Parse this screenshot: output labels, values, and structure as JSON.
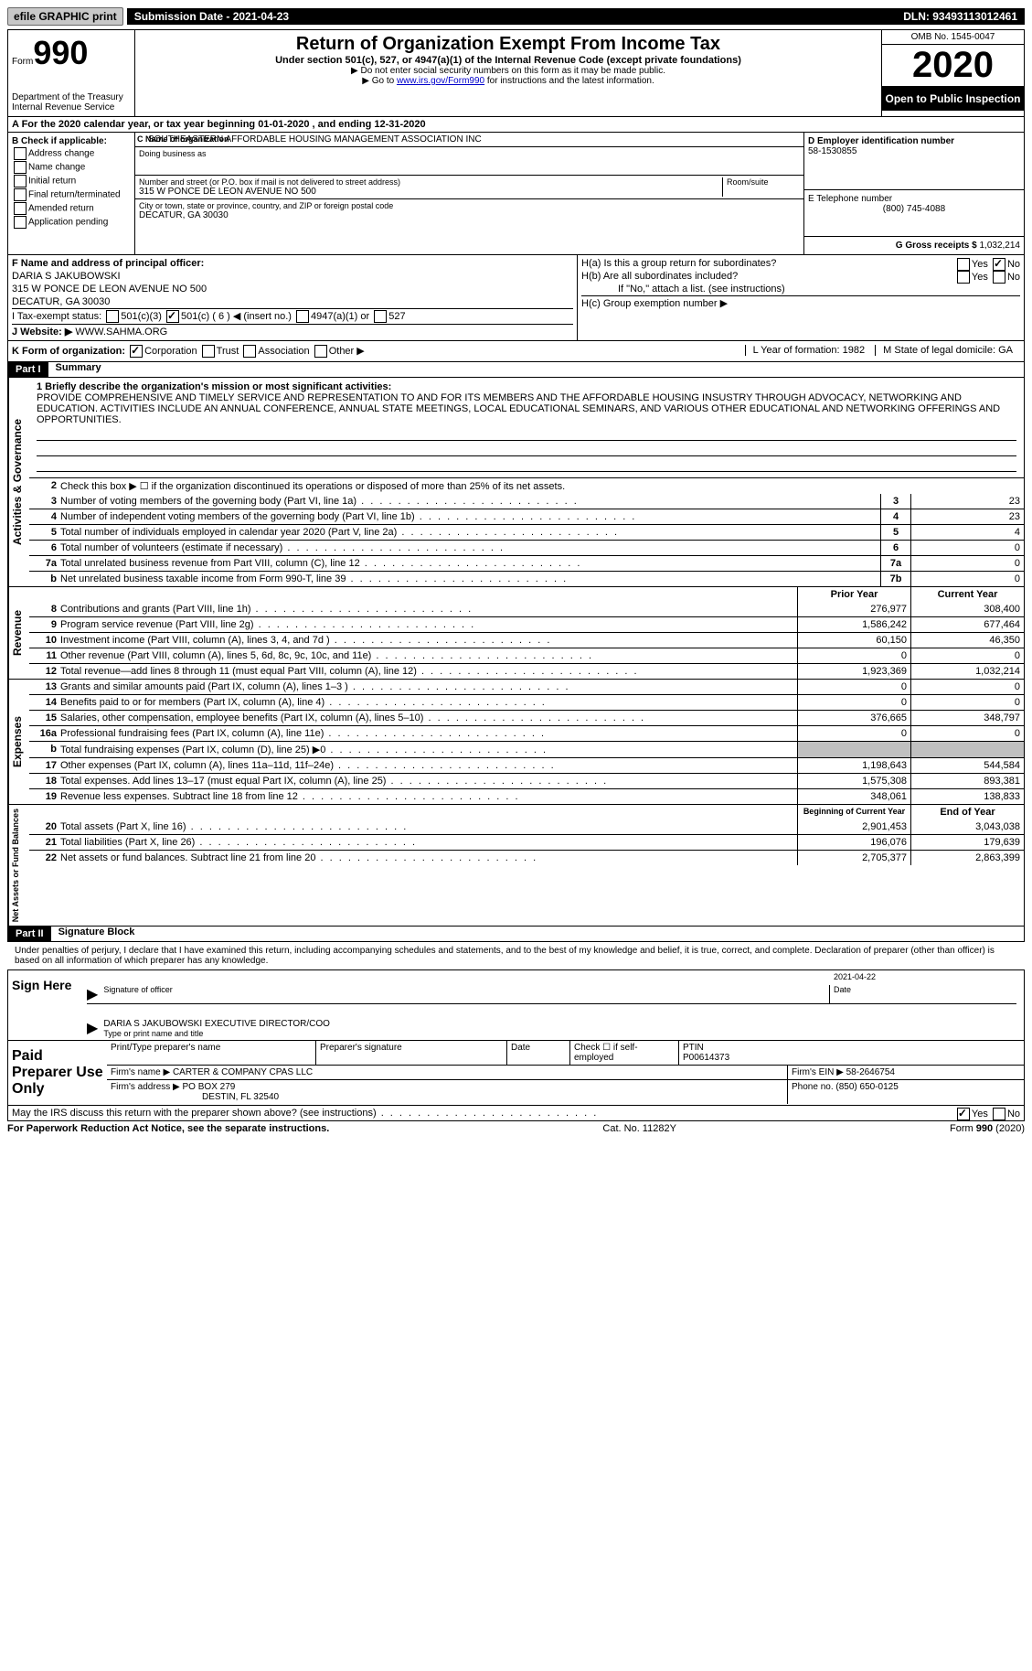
{
  "topbar": {
    "efile_label": "efile GRAPHIC print",
    "submission_label": "Submission Date - 2021-04-23",
    "dln_label": "DLN: 93493113012461"
  },
  "header": {
    "form_word": "Form",
    "form_num": "990",
    "dept": "Department of the Treasury",
    "irs": "Internal Revenue Service",
    "title": "Return of Organization Exempt From Income Tax",
    "sub": "Under section 501(c), 527, or 4947(a)(1) of the Internal Revenue Code (except private foundations)",
    "note1": "▶ Do not enter social security numbers on this form as it may be made public.",
    "note2_pre": "▶ Go to ",
    "note2_link": "www.irs.gov/Form990",
    "note2_post": " for instructions and the latest information.",
    "omb": "OMB No. 1545-0047",
    "year": "2020",
    "inspect": "Open to Public Inspection"
  },
  "rowA": "A For the 2020 calendar year, or tax year beginning 01-01-2020   , and ending 12-31-2020",
  "blockB": {
    "title": "B Check if applicable:",
    "opts": [
      "Address change",
      "Name change",
      "Initial return",
      "Final return/terminated",
      "Amended return",
      "Application pending"
    ]
  },
  "blockC": {
    "name_label": "C Name of organization",
    "name": "SOUTHEASTERN AFFORDABLE HOUSING MANAGEMENT ASSOCIATION INC",
    "dba_label": "Doing business as",
    "dba": "",
    "addr_label": "Number and street (or P.O. box if mail is not delivered to street address)",
    "room_label": "Room/suite",
    "addr": "315 W PONCE DE LEON AVENUE NO 500",
    "city_label": "City or town, state or province, country, and ZIP or foreign postal code",
    "city": "DECATUR, GA  30030"
  },
  "blockD": {
    "ein_label": "D Employer identification number",
    "ein": "58-1530855",
    "phone_label": "E Telephone number",
    "phone": "(800) 745-4088",
    "gross_label": "G Gross receipts $ ",
    "gross": "1,032,214"
  },
  "blockF": {
    "label": "F Name and address of principal officer:",
    "name": "DARIA S JAKUBOWSKI",
    "addr": "315 W PONCE DE LEON AVENUE NO 500",
    "city": "DECATUR, GA  30030"
  },
  "blockH": {
    "ha": "H(a)  Is this a group return for subordinates?",
    "hb": "H(b)  Are all subordinates included?",
    "hb_note": "If \"No,\" attach a list. (see instructions)",
    "hc": "H(c)  Group exemption number ▶"
  },
  "rowI": {
    "label": "I   Tax-exempt status:",
    "o1": "501(c)(3)",
    "o2": "501(c) ( 6 ) ◀ (insert no.)",
    "o3": "4947(a)(1) or",
    "o4": "527"
  },
  "rowJ": {
    "label": "J   Website: ▶",
    "val": "WWW.SAHMA.ORG"
  },
  "rowK": {
    "label": "K Form of organization:",
    "opts": [
      "Corporation",
      "Trust",
      "Association",
      "Other ▶"
    ],
    "l": "L Year of formation: 1982",
    "m": "M State of legal domicile: GA"
  },
  "part1": {
    "hdr": "Part I",
    "title": "Summary"
  },
  "mission": {
    "q": "1   Briefly describe the organization's mission or most significant activities:",
    "text": "PROVIDE COMPREHENSIVE AND TIMELY SERVICE AND REPRESENTATION TO AND FOR ITS MEMBERS AND THE AFFORDABLE HOUSING INSUSTRY THROUGH ADVOCACY, NETWORKING AND EDUCATION. ACTIVITIES INCLUDE AN ANNUAL CONFERENCE, ANNUAL STATE MEETINGS, LOCAL EDUCATIONAL SEMINARS, AND VARIOUS OTHER EDUCATIONAL AND NETWORKING OFFERINGS AND OPPORTUNITIES."
  },
  "gov": {
    "l2": "Check this box ▶ ☐  if the organization discontinued its operations or disposed of more than 25% of its net assets.",
    "rows": [
      {
        "n": "3",
        "t": "Number of voting members of the governing body (Part VI, line 1a)",
        "box": "3",
        "v": "23"
      },
      {
        "n": "4",
        "t": "Number of independent voting members of the governing body (Part VI, line 1b)",
        "box": "4",
        "v": "23"
      },
      {
        "n": "5",
        "t": "Total number of individuals employed in calendar year 2020 (Part V, line 2a)",
        "box": "5",
        "v": "4"
      },
      {
        "n": "6",
        "t": "Total number of volunteers (estimate if necessary)",
        "box": "6",
        "v": "0"
      },
      {
        "n": "7a",
        "t": "Total unrelated business revenue from Part VIII, column (C), line 12",
        "box": "7a",
        "v": "0"
      },
      {
        "n": "b",
        "t": "Net unrelated business taxable income from Form 990-T, line 39",
        "box": "7b",
        "v": "0"
      }
    ]
  },
  "colhdrs": {
    "prior": "Prior Year",
    "current": "Current Year"
  },
  "revenue": [
    {
      "n": "8",
      "t": "Contributions and grants (Part VIII, line 1h)",
      "p": "276,977",
      "c": "308,400"
    },
    {
      "n": "9",
      "t": "Program service revenue (Part VIII, line 2g)",
      "p": "1,586,242",
      "c": "677,464"
    },
    {
      "n": "10",
      "t": "Investment income (Part VIII, column (A), lines 3, 4, and 7d )",
      "p": "60,150",
      "c": "46,350"
    },
    {
      "n": "11",
      "t": "Other revenue (Part VIII, column (A), lines 5, 6d, 8c, 9c, 10c, and 11e)",
      "p": "0",
      "c": "0"
    },
    {
      "n": "12",
      "t": "Total revenue—add lines 8 through 11 (must equal Part VIII, column (A), line 12)",
      "p": "1,923,369",
      "c": "1,032,214"
    }
  ],
  "expenses": [
    {
      "n": "13",
      "t": "Grants and similar amounts paid (Part IX, column (A), lines 1–3 )",
      "p": "0",
      "c": "0"
    },
    {
      "n": "14",
      "t": "Benefits paid to or for members (Part IX, column (A), line 4)",
      "p": "0",
      "c": "0"
    },
    {
      "n": "15",
      "t": "Salaries, other compensation, employee benefits (Part IX, column (A), lines 5–10)",
      "p": "376,665",
      "c": "348,797"
    },
    {
      "n": "16a",
      "t": "Professional fundraising fees (Part IX, column (A), line 11e)",
      "p": "0",
      "c": "0"
    },
    {
      "n": "b",
      "t": "Total fundraising expenses (Part IX, column (D), line 25) ▶0",
      "p": "",
      "c": "",
      "gray": true
    },
    {
      "n": "17",
      "t": "Other expenses (Part IX, column (A), lines 11a–11d, 11f–24e)",
      "p": "1,198,643",
      "c": "544,584"
    },
    {
      "n": "18",
      "t": "Total expenses. Add lines 13–17 (must equal Part IX, column (A), line 25)",
      "p": "1,575,308",
      "c": "893,381"
    },
    {
      "n": "19",
      "t": "Revenue less expenses. Subtract line 18 from line 12",
      "p": "348,061",
      "c": "138,833"
    }
  ],
  "nethdrs": {
    "begin": "Beginning of Current Year",
    "end": "End of Year"
  },
  "net": [
    {
      "n": "20",
      "t": "Total assets (Part X, line 16)",
      "p": "2,901,453",
      "c": "3,043,038"
    },
    {
      "n": "21",
      "t": "Total liabilities (Part X, line 26)",
      "p": "196,076",
      "c": "179,639"
    },
    {
      "n": "22",
      "t": "Net assets or fund balances. Subtract line 21 from line 20",
      "p": "2,705,377",
      "c": "2,863,399"
    }
  ],
  "part2": {
    "hdr": "Part II",
    "title": "Signature Block"
  },
  "sig": {
    "intro": "Under penalties of perjury, I declare that I have examined this return, including accompanying schedules and statements, and to the best of my knowledge and belief, it is true, correct, and complete. Declaration of preparer (other than officer) is based on all information of which preparer has any knowledge.",
    "sign_here": "Sign Here",
    "date": "2021-04-22",
    "sig_of": "Signature of officer",
    "date_lbl": "Date",
    "name": "DARIA S JAKUBOWSKI  EXECUTIVE DIRECTOR/COO",
    "name_lbl": "Type or print name and title"
  },
  "prep": {
    "label": "Paid Preparer Use Only",
    "h1": "Print/Type preparer's name",
    "h2": "Preparer's signature",
    "h3": "Date",
    "h4_a": "Check ☐ if self-employed",
    "h4_b": "PTIN",
    "ptin": "P00614373",
    "firm_lbl": "Firm's name    ▶",
    "firm": "CARTER & COMPANY CPAS LLC",
    "ein_lbl": "Firm's EIN ▶",
    "ein": "58-2646754",
    "addr_lbl": "Firm's address ▶",
    "addr1": "PO BOX 279",
    "addr2": "DESTIN, FL  32540",
    "phone_lbl": "Phone no.",
    "phone": "(850) 650-0125"
  },
  "discuss": "May the IRS discuss this return with the preparer shown above? (see instructions)",
  "footer": {
    "l": "For Paperwork Reduction Act Notice, see the separate instructions.",
    "m": "Cat. No. 11282Y",
    "r": "Form 990 (2020)"
  },
  "labels": {
    "yes": "Yes",
    "no": "No"
  },
  "vert": {
    "gov": "Activities & Governance",
    "rev": "Revenue",
    "exp": "Expenses",
    "net": "Net Assets or Fund Balances"
  }
}
